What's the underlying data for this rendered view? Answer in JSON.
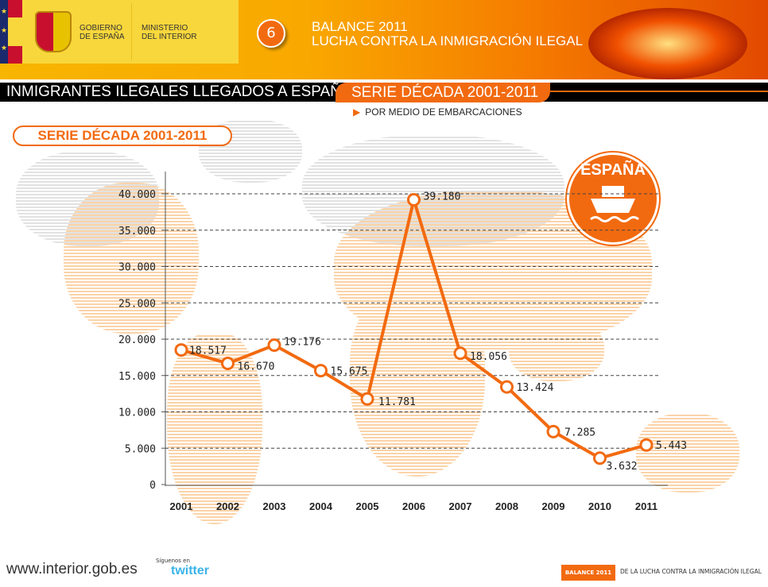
{
  "header": {
    "gov_line1": "GOBIERNO",
    "gov_line2": "DE ESPAÑA",
    "min_line1": "MINISTERIO",
    "min_line2": "DEL INTERIOR",
    "chapter_number": "6",
    "title1": "BALANCE  2011",
    "title2": "LUCHA CONTRA LA INMIGRACIÓN ILEGAL"
  },
  "title_bar": {
    "title": "INMIGRANTES ILEGALES LLEGADOS A ESPAÑA",
    "serie": "SERIE DÉCADA 2001-2011"
  },
  "subtitle": "POR MEDIO DE EMBARCACIONES",
  "badge": {
    "label": "ESPAÑA",
    "icon": "boat-icon"
  },
  "colors": {
    "accent": "#f26a10"
  },
  "chart_data": {
    "type": "line",
    "title": "SERIE DÉCADA 2001-2011",
    "categories": [
      "2001",
      "2002",
      "2003",
      "2004",
      "2005",
      "2006",
      "2007",
      "2008",
      "2009",
      "2010",
      "2011"
    ],
    "values": [
      18517,
      16670,
      19176,
      15675,
      11781,
      39180,
      18056,
      13424,
      7285,
      3632,
      5443
    ],
    "data_labels": [
      "18.517",
      "16.670",
      "19.176",
      "15.675",
      "11.781",
      "39.180",
      "18.056",
      "13.424",
      "7.285",
      "3.632",
      "5.443"
    ],
    "yticks": [
      0,
      5000,
      10000,
      15000,
      20000,
      25000,
      30000,
      35000,
      40000
    ],
    "ytick_labels": [
      "0",
      "5.000",
      "10.000",
      "15.000",
      "20.000",
      "25.000",
      "30.000",
      "35.000",
      "40.000"
    ],
    "ylim": [
      0,
      40000
    ],
    "grid": "horizontal dashed",
    "xlabel": "",
    "ylabel": ""
  },
  "footer": {
    "url": "www.interior.gob.es",
    "follow": "Síguenos en",
    "twitter": "twitter",
    "balance": "BALANCE  2011",
    "tagline": "DE LA LUCHA CONTRA LA INMIGRACIÓN ILEGAL"
  }
}
